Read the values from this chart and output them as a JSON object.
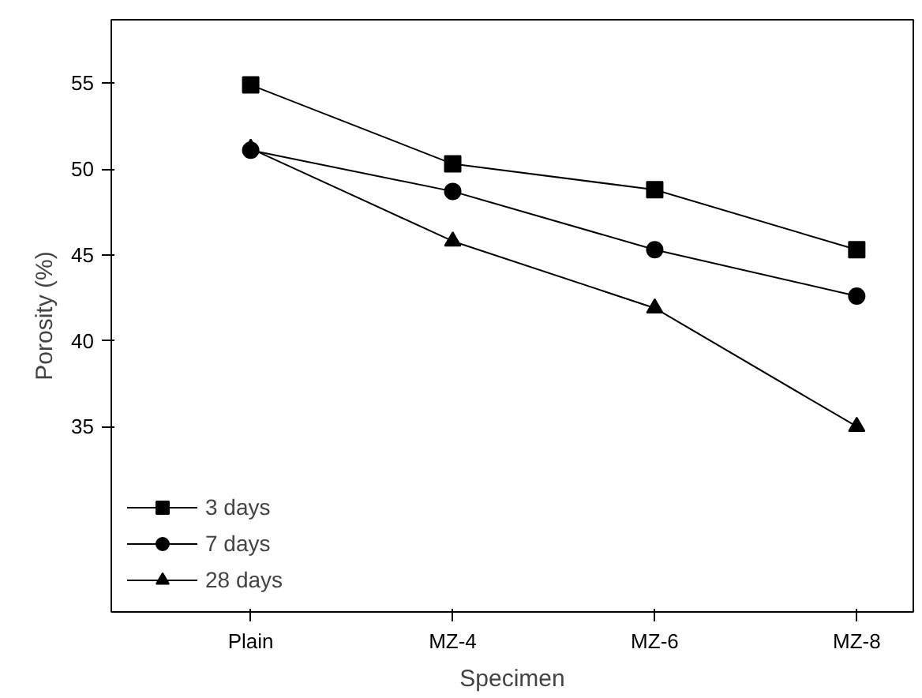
{
  "chart_data": {
    "type": "line",
    "xlabel": "Specimen",
    "ylabel": "Porosity (%)",
    "categories": [
      "Plain",
      "MZ-4",
      "MZ-6",
      "MZ-8"
    ],
    "ylim": [
      24.2,
      58.7
    ],
    "yticks": [
      35,
      40,
      45,
      50,
      55
    ],
    "grid": false,
    "legend": "bottom left",
    "series": [
      {
        "name": "3 days",
        "color": "#000000",
        "marker": "square",
        "values": [
          54.9,
          50.3,
          48.8,
          45.3
        ]
      },
      {
        "name": "7 days",
        "color": "#000000",
        "marker": "circle",
        "values": [
          51.1,
          48.7,
          45.3,
          42.6
        ]
      },
      {
        "name": "28 days",
        "color": "#000000",
        "marker": "triangle",
        "values": [
          51.2,
          45.8,
          41.9,
          35.0
        ]
      }
    ]
  }
}
